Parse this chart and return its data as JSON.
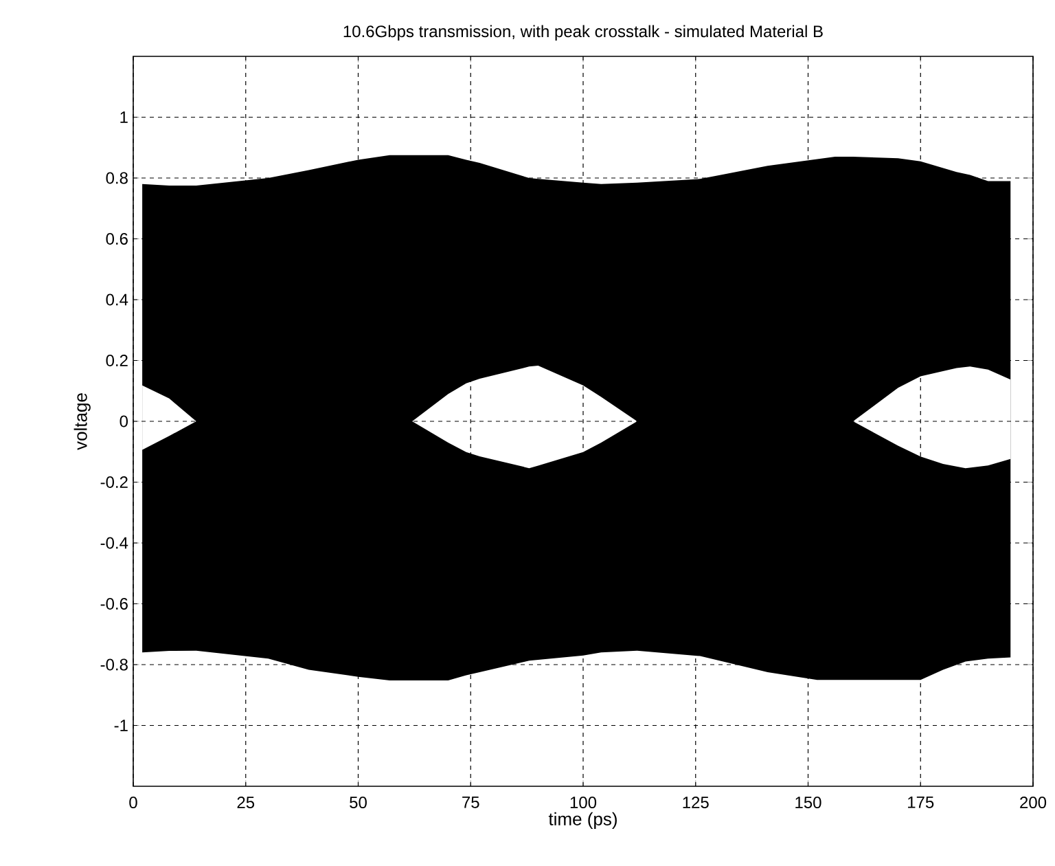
{
  "chart_data": {
    "type": "area",
    "title": "10.6Gbps transmission, with peak crosstalk - simulated Material B",
    "xlabel": "time (ps)",
    "ylabel": "voltage",
    "xlim": [
      0,
      200
    ],
    "xticks": [
      0,
      25,
      50,
      75,
      100,
      125,
      150,
      175,
      200
    ],
    "ylim": [
      -1.2,
      1.2
    ],
    "yticks": [
      -1,
      -0.8,
      -0.6,
      -0.4,
      -0.2,
      0,
      0.2,
      0.4,
      0.6,
      0.8,
      1
    ],
    "grid": true,
    "series": [
      {
        "color": "#000000",
        "x": [
          2,
          8,
          14,
          30,
          39,
          50,
          57,
          62,
          70,
          74,
          77,
          88,
          90,
          100,
          104,
          112,
          126,
          141,
          156,
          160,
          170,
          175,
          183,
          186,
          190,
          195
        ],
        "values": [
          0.78,
          0.775,
          0.775,
          0.8,
          0.826,
          0.86,
          0.875,
          0.875,
          0.875,
          0.86,
          0.85,
          0.8,
          0.797,
          0.785,
          0.78,
          0.785,
          0.797,
          0.84,
          0.87,
          0.87,
          0.865,
          0.855,
          0.82,
          0.81,
          0.79,
          0.79
        ]
      },
      {
        "color": "#000000",
        "x": [
          2,
          8,
          14,
          30,
          39,
          50,
          57,
          62,
          70,
          74,
          77,
          88,
          90,
          100,
          104,
          112,
          126,
          141,
          152,
          160,
          170,
          175,
          180,
          185,
          190,
          195
        ],
        "values": [
          -0.76,
          -0.755,
          -0.754,
          -0.78,
          -0.817,
          -0.84,
          -0.852,
          -0.852,
          -0.852,
          -0.835,
          -0.825,
          -0.787,
          -0.784,
          -0.77,
          -0.76,
          -0.754,
          -0.772,
          -0.825,
          -0.85,
          -0.85,
          -0.85,
          -0.85,
          -0.817,
          -0.79,
          -0.78,
          -0.776
        ]
      },
      {
        "color": "#ffffff",
        "x": [
          2,
          8,
          14,
          62,
          70,
          74,
          77,
          88,
          90,
          100,
          104,
          112,
          160,
          170,
          175,
          183,
          186,
          190,
          195
        ],
        "values": [
          0.118,
          0.075,
          0,
          0,
          0.09,
          0.125,
          0.14,
          0.18,
          0.183,
          0.118,
          0.08,
          0,
          0,
          0.11,
          0.148,
          0.175,
          0.18,
          0.17,
          0.137
        ]
      },
      {
        "color": "#ffffff",
        "x": [
          2,
          8,
          14,
          62,
          70,
          74,
          77,
          88,
          90,
          100,
          104,
          112,
          160,
          170,
          175,
          180,
          185,
          190,
          195
        ],
        "values": [
          -0.094,
          -0.048,
          0,
          0,
          -0.07,
          -0.101,
          -0.115,
          -0.154,
          -0.146,
          -0.101,
          -0.07,
          0,
          0,
          -0.08,
          -0.116,
          -0.14,
          -0.154,
          -0.145,
          -0.124
        ]
      }
    ]
  }
}
